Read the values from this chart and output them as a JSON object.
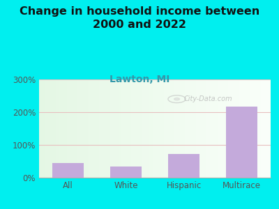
{
  "title": "Change in household income between\n2000 and 2022",
  "subtitle": "Lawton, MI",
  "categories": [
    "All",
    "White",
    "Hispanic",
    "Multirace"
  ],
  "values": [
    45,
    33,
    73,
    217
  ],
  "bar_color": "#C4AADB",
  "outer_bg": "#00EFEF",
  "title_color": "#111111",
  "subtitle_color": "#3399AA",
  "tick_label_color": "#555555",
  "ylim": [
    0,
    300
  ],
  "yticks": [
    0,
    100,
    200,
    300
  ],
  "watermark": "City-Data.com",
  "title_fontsize": 11.5,
  "subtitle_fontsize": 10,
  "tick_fontsize": 8.5,
  "grid_color": "#E8C0C0",
  "plot_bg_left": "#D8F0D8",
  "plot_bg_right": "#F8FFF8"
}
